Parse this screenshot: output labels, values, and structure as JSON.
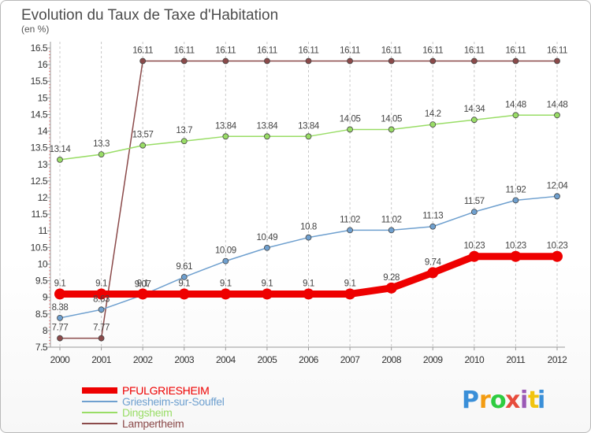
{
  "chart_data": {
    "type": "line",
    "title": "Evolution du Taux de Taxe d'Habitation",
    "subtitle": "(en %)",
    "xlabel": "",
    "ylabel": "",
    "x": [
      "2000",
      "2001",
      "2002",
      "2003",
      "2004",
      "2005",
      "2006",
      "2007",
      "2008",
      "2009",
      "2010",
      "2011",
      "2012"
    ],
    "ylim": [
      7.5,
      16.5
    ],
    "yticks": [
      "7.5",
      "8",
      "8.5",
      "9",
      "9.5",
      "10",
      "10.5",
      "11",
      "11.5",
      "12",
      "12.5",
      "13",
      "13.5",
      "14",
      "14.5",
      "15",
      "15.5",
      "16",
      "16.5"
    ],
    "grid": "vertical-dashed",
    "legend_position": "bottom-left",
    "series": [
      {
        "name": "PFULGRIESHEIM",
        "color": "#ee0000",
        "values": [
          9.1,
          9.1,
          9.1,
          9.1,
          9.1,
          9.1,
          9.1,
          9.1,
          9.28,
          9.74,
          10.23,
          10.23,
          10.23
        ],
        "labels": [
          "9.1",
          "9.1",
          "9.1",
          "9.1",
          "9.1",
          "9.1",
          "9.1",
          "9.1",
          "9.28",
          "9.74",
          "10.23",
          "10.23",
          "10.23"
        ]
      },
      {
        "name": "Griesheim-sur-Souffel",
        "color": "#6fa0cf",
        "values": [
          8.38,
          8.63,
          9.07,
          9.61,
          10.09,
          10.49,
          10.8,
          11.02,
          11.02,
          11.13,
          11.57,
          11.92,
          12.04
        ],
        "labels": [
          "8.38",
          "8.63",
          "9.07",
          "9.61",
          "10.09",
          "10.49",
          "10.8",
          "11.02",
          "11.02",
          "11.13",
          "11.57",
          "11.92",
          "12.04"
        ]
      },
      {
        "name": "Dingsheim",
        "color": "#99dd66",
        "values": [
          13.14,
          13.3,
          13.57,
          13.7,
          13.84,
          13.84,
          13.84,
          14.05,
          14.05,
          14.2,
          14.34,
          14.48,
          14.48
        ],
        "labels": [
          "13.14",
          "13.3",
          "13.57",
          "13.7",
          "13.84",
          "13.84",
          "13.84",
          "14.05",
          "14.05",
          "14.2",
          "14.34",
          "14.48",
          "14.48"
        ]
      },
      {
        "name": "Lampertheim",
        "color": "#8b4a4a",
        "values": [
          7.77,
          7.77,
          16.11,
          16.11,
          16.11,
          16.11,
          16.11,
          16.11,
          16.11,
          16.11,
          16.11,
          16.11,
          16.11
        ],
        "labels": [
          "7.77",
          "7.77",
          "16.11",
          "16.11",
          "16.11",
          "16.11",
          "16.11",
          "16.11",
          "16.11",
          "16.11",
          "16.11",
          "16.11",
          "16.11"
        ]
      }
    ]
  },
  "logo": {
    "letters": [
      "P",
      "r",
      "o",
      "x",
      "i",
      "t",
      "i"
    ],
    "colors": [
      "#3a8fd8",
      "#f39c12",
      "#2ecc40",
      "#e74c3c",
      "#9b59b6",
      "#f1c40f",
      "#3a8fd8"
    ]
  }
}
